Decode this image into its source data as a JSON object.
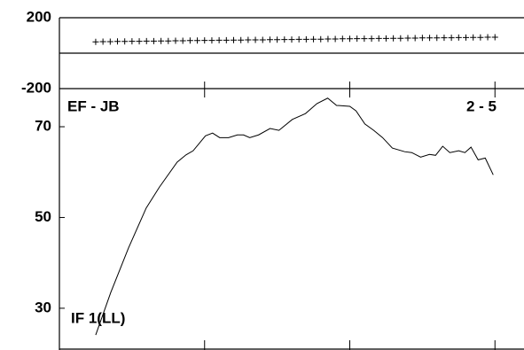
{
  "chart_data": [
    {
      "type": "scatter",
      "marker": "plus",
      "color": "#000000",
      "x": [
        2.5,
        3,
        3.5,
        4,
        4.5,
        5,
        5.5,
        6,
        6.5,
        7,
        7.5,
        8,
        8.5,
        9,
        9.5,
        10,
        10.5,
        11,
        11.5,
        12,
        12.5,
        13,
        13.5,
        14,
        14.5,
        15,
        15.5,
        16,
        16.5,
        17,
        17.5,
        18,
        18.5,
        19,
        19.5,
        20,
        20.5,
        21,
        21.5,
        22,
        22.5,
        23,
        23.5,
        24,
        24.5,
        25,
        25.5,
        26,
        26.5,
        27,
        27.5,
        28,
        28.5,
        29,
        29.5,
        30
      ],
      "values": [
        64,
        65,
        65,
        66,
        66,
        67,
        67,
        68,
        68,
        69,
        69,
        70,
        70,
        71,
        71,
        72,
        72,
        73,
        73,
        74,
        74,
        75,
        75,
        75,
        76,
        76,
        77,
        77,
        78,
        78,
        79,
        79,
        80,
        80,
        81,
        81,
        82,
        82,
        82,
        83,
        83,
        84,
        84,
        85,
        85,
        86,
        86,
        86,
        87,
        87,
        88,
        88,
        89,
        89,
        90,
        90
      ],
      "xlim": [
        0,
        32
      ],
      "ylim": [
        -200,
        200
      ],
      "yticks": [
        200,
        -200
      ]
    },
    {
      "type": "line",
      "color": "#000000",
      "annotations": [
        "EF - JB",
        "2 - 5",
        "IF 1(LL)"
      ],
      "x": [
        2.5,
        3.54,
        4.76,
        5.98,
        6.89,
        8.11,
        8.72,
        9.21,
        10.06,
        10.55,
        11.04,
        11.65,
        12.26,
        12.68,
        13.11,
        13.72,
        14.51,
        15.12,
        16.04,
        16.95,
        17.74,
        18.48,
        19.09,
        20.0,
        20.43,
        21.04,
        21.65,
        22.26,
        22.93,
        23.78,
        24.27,
        24.88,
        25.49,
        25.91,
        26.4,
        26.89,
        27.5,
        27.93,
        28.35,
        28.84,
        29.33,
        29.88
      ],
      "values": [
        24.1,
        33.5,
        43.3,
        52.1,
        56.7,
        62.2,
        63.8,
        64.7,
        68.0,
        68.6,
        67.6,
        67.6,
        68.2,
        68.2,
        67.6,
        68.2,
        69.6,
        69.2,
        71.6,
        72.9,
        75.1,
        76.3,
        74.7,
        74.5,
        73.5,
        70.6,
        69.2,
        67.6,
        65.3,
        64.5,
        64.3,
        63.3,
        63.9,
        63.7,
        65.7,
        64.3,
        64.7,
        64.3,
        65.5,
        62.7,
        63.1,
        59.4
      ],
      "xlim": [
        0,
        32
      ],
      "xticks": [
        10,
        20,
        30
      ],
      "ylim": [
        20.8,
        78.4
      ],
      "yticks": [
        70,
        50,
        30
      ]
    }
  ]
}
